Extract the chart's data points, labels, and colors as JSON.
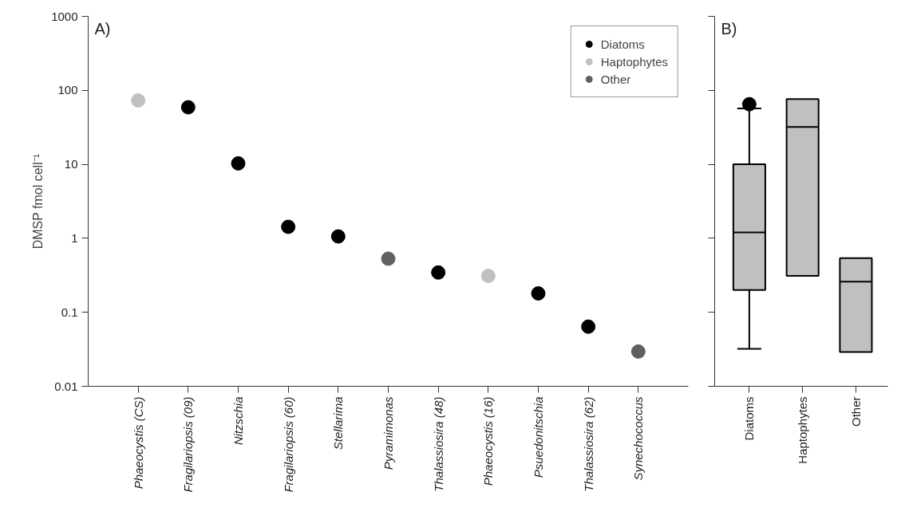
{
  "chart_data": [
    {
      "type": "scatter",
      "title": "A)",
      "ylabel": "DMSP fmol cell⁻¹",
      "categories": [
        "Phaeocystis (CS)",
        "Fragilariopsis (09)",
        "Nitzschia",
        "Fragilariopsis (60)",
        "Stellarima",
        "Pyramimonas",
        "Thalassiosira (48)",
        "Phaeocystis (16)",
        "Psuedonitschia",
        "Thalassiosira (62)",
        "Synechococcus"
      ],
      "series": [
        {
          "name": "Diatoms",
          "color": "#000000",
          "values": [
            null,
            59,
            10.3,
            1.43,
            1.06,
            null,
            0.345,
            null,
            0.18,
            0.064,
            null
          ]
        },
        {
          "name": "Haptophytes",
          "color": "#c0c0c0",
          "values": [
            73,
            null,
            null,
            null,
            null,
            null,
            null,
            0.31,
            null,
            null,
            null
          ]
        },
        {
          "name": "Other",
          "color": "#606060",
          "values": [
            null,
            null,
            null,
            null,
            null,
            0.53,
            null,
            null,
            null,
            null,
            0.0295
          ]
        }
      ],
      "log": true,
      "ylim": [
        0.01,
        1000
      ],
      "yticks": [
        0.01,
        0.1,
        1,
        10,
        100,
        1000
      ],
      "grid": false,
      "legend": "top right",
      "marker": "circle"
    },
    {
      "type": "box",
      "title": "B)",
      "categories": [
        "Diatoms",
        "Haptophytes",
        "Other"
      ],
      "color": "#c0c0c0",
      "boxes": [
        {
          "low": 0.032,
          "q1": 0.2,
          "median": 1.2,
          "q3": 10,
          "high": 57,
          "outliers": [
            65
          ]
        },
        {
          "low": 0.31,
          "q1": 0.31,
          "median": 32,
          "q3": 76,
          "high": 76
        },
        {
          "low": 0.029,
          "q1": 0.029,
          "median": 0.26,
          "q3": 0.54,
          "high": 0.54
        }
      ],
      "log": true,
      "ylim": [
        0.01,
        1000
      ],
      "yticks": [
        0.01,
        0.1,
        1,
        10,
        100,
        1000
      ],
      "grid": false,
      "tick_labels": "x"
    }
  ]
}
